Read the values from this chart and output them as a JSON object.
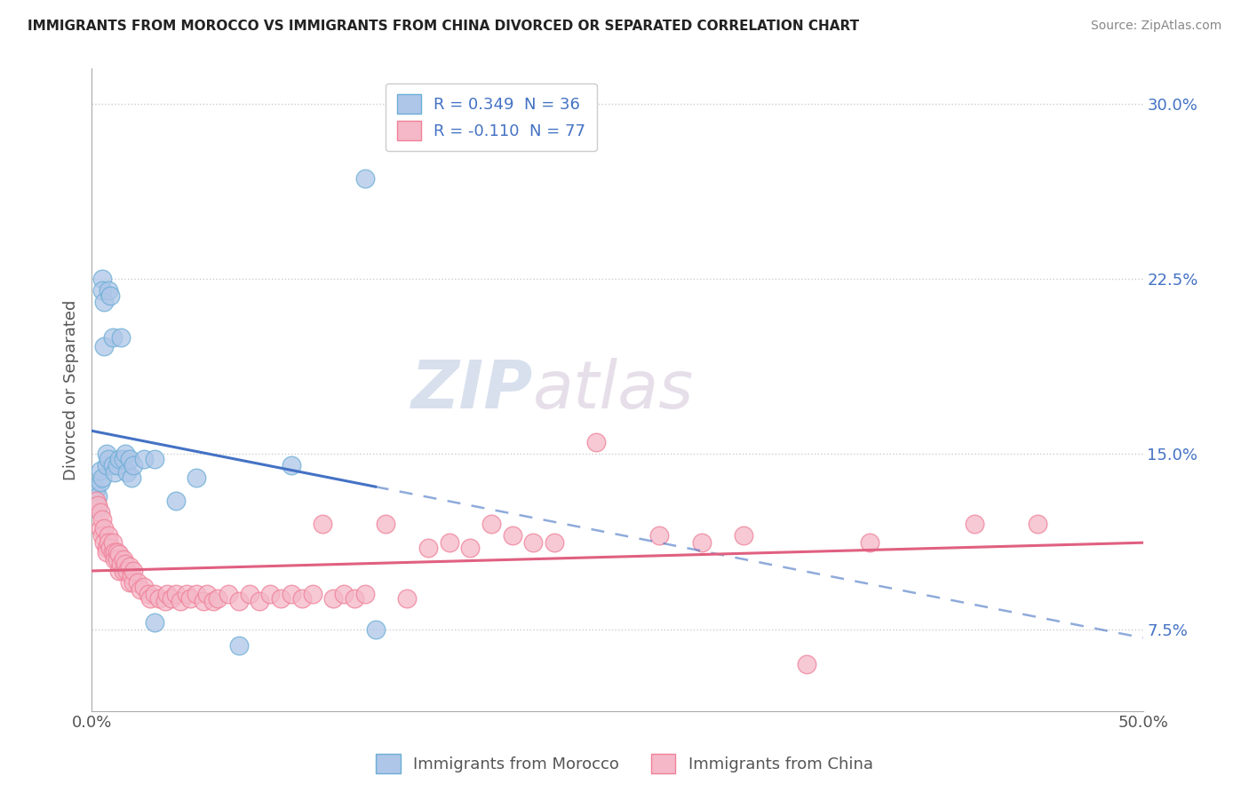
{
  "title": "IMMIGRANTS FROM MOROCCO VS IMMIGRANTS FROM CHINA DIVORCED OR SEPARATED CORRELATION CHART",
  "source": "Source: ZipAtlas.com",
  "ylabel": "Divorced or Separated",
  "xlim": [
    0.0,
    0.5
  ],
  "ylim": [
    0.04,
    0.315
  ],
  "y_ticks_right": [
    0.075,
    0.15,
    0.225,
    0.3
  ],
  "y_tick_labels_right": [
    "7.5%",
    "15.0%",
    "22.5%",
    "30.0%"
  ],
  "morocco_color": "#aec6e8",
  "china_color": "#f4b8c8",
  "morocco_edge": "#6baed6",
  "china_edge": "#f08098",
  "trendline_morocco_color": "#4472c4",
  "trendline_china_color": "#e06080",
  "background_color": "#ffffff",
  "watermark_zip": "ZIP",
  "watermark_atlas": "atlas",
  "morocco_scatter": [
    [
      0.002,
      0.135
    ],
    [
      0.003,
      0.132
    ],
    [
      0.003,
      0.127
    ],
    [
      0.004,
      0.138
    ],
    [
      0.004,
      0.143
    ],
    [
      0.005,
      0.14
    ],
    [
      0.005,
      0.225
    ],
    [
      0.005,
      0.22
    ],
    [
      0.006,
      0.215
    ],
    [
      0.006,
      0.196
    ],
    [
      0.007,
      0.145
    ],
    [
      0.007,
      0.15
    ],
    [
      0.008,
      0.148
    ],
    [
      0.008,
      0.22
    ],
    [
      0.009,
      0.218
    ],
    [
      0.01,
      0.2
    ],
    [
      0.01,
      0.145
    ],
    [
      0.011,
      0.142
    ],
    [
      0.012,
      0.145
    ],
    [
      0.013,
      0.148
    ],
    [
      0.014,
      0.2
    ],
    [
      0.015,
      0.148
    ],
    [
      0.016,
      0.15
    ],
    [
      0.017,
      0.142
    ],
    [
      0.018,
      0.148
    ],
    [
      0.019,
      0.14
    ],
    [
      0.02,
      0.145
    ],
    [
      0.025,
      0.148
    ],
    [
      0.03,
      0.078
    ],
    [
      0.03,
      0.148
    ],
    [
      0.04,
      0.13
    ],
    [
      0.05,
      0.14
    ],
    [
      0.07,
      0.068
    ],
    [
      0.095,
      0.145
    ],
    [
      0.13,
      0.268
    ],
    [
      0.135,
      0.075
    ]
  ],
  "china_scatter": [
    [
      0.002,
      0.13
    ],
    [
      0.003,
      0.128
    ],
    [
      0.004,
      0.118
    ],
    [
      0.004,
      0.125
    ],
    [
      0.005,
      0.122
    ],
    [
      0.005,
      0.115
    ],
    [
      0.006,
      0.118
    ],
    [
      0.006,
      0.112
    ],
    [
      0.007,
      0.11
    ],
    [
      0.007,
      0.108
    ],
    [
      0.008,
      0.115
    ],
    [
      0.008,
      0.112
    ],
    [
      0.009,
      0.11
    ],
    [
      0.01,
      0.108
    ],
    [
      0.01,
      0.112
    ],
    [
      0.011,
      0.108
    ],
    [
      0.011,
      0.105
    ],
    [
      0.012,
      0.108
    ],
    [
      0.012,
      0.105
    ],
    [
      0.013,
      0.1
    ],
    [
      0.013,
      0.107
    ],
    [
      0.014,
      0.103
    ],
    [
      0.015,
      0.105
    ],
    [
      0.015,
      0.1
    ],
    [
      0.016,
      0.103
    ],
    [
      0.017,
      0.1
    ],
    [
      0.018,
      0.102
    ],
    [
      0.018,
      0.095
    ],
    [
      0.019,
      0.098
    ],
    [
      0.02,
      0.095
    ],
    [
      0.02,
      0.1
    ],
    [
      0.022,
      0.095
    ],
    [
      0.023,
      0.092
    ],
    [
      0.025,
      0.093
    ],
    [
      0.027,
      0.09
    ],
    [
      0.028,
      0.088
    ],
    [
      0.03,
      0.09
    ],
    [
      0.032,
      0.088
    ],
    [
      0.035,
      0.087
    ],
    [
      0.036,
      0.09
    ],
    [
      0.038,
      0.088
    ],
    [
      0.04,
      0.09
    ],
    [
      0.042,
      0.087
    ],
    [
      0.045,
      0.09
    ],
    [
      0.047,
      0.088
    ],
    [
      0.05,
      0.09
    ],
    [
      0.053,
      0.087
    ],
    [
      0.055,
      0.09
    ],
    [
      0.058,
      0.087
    ],
    [
      0.06,
      0.088
    ],
    [
      0.065,
      0.09
    ],
    [
      0.07,
      0.087
    ],
    [
      0.075,
      0.09
    ],
    [
      0.08,
      0.087
    ],
    [
      0.085,
      0.09
    ],
    [
      0.09,
      0.088
    ],
    [
      0.095,
      0.09
    ],
    [
      0.1,
      0.088
    ],
    [
      0.105,
      0.09
    ],
    [
      0.11,
      0.12
    ],
    [
      0.115,
      0.088
    ],
    [
      0.12,
      0.09
    ],
    [
      0.125,
      0.088
    ],
    [
      0.13,
      0.09
    ],
    [
      0.14,
      0.12
    ],
    [
      0.15,
      0.088
    ],
    [
      0.16,
      0.11
    ],
    [
      0.17,
      0.112
    ],
    [
      0.18,
      0.11
    ],
    [
      0.19,
      0.12
    ],
    [
      0.2,
      0.115
    ],
    [
      0.21,
      0.112
    ],
    [
      0.22,
      0.112
    ],
    [
      0.24,
      0.155
    ],
    [
      0.27,
      0.115
    ],
    [
      0.29,
      0.112
    ],
    [
      0.31,
      0.115
    ],
    [
      0.34,
      0.06
    ],
    [
      0.37,
      0.112
    ],
    [
      0.42,
      0.12
    ],
    [
      0.45,
      0.12
    ]
  ]
}
